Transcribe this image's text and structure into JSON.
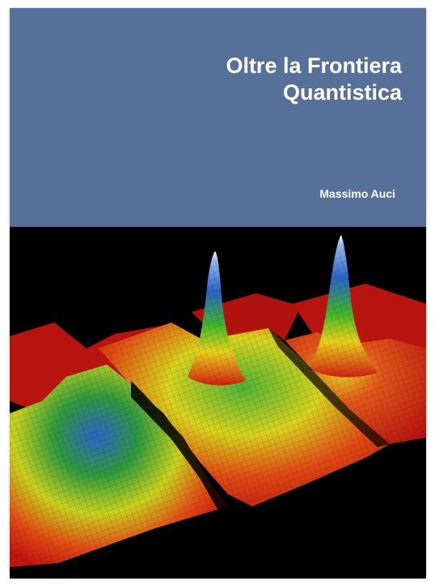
{
  "book": {
    "title_line1": "Oltre la Frontiera",
    "title_line2": "Quantistica",
    "author": "Massimo Auci"
  },
  "colors": {
    "header_background": "#56709a",
    "title_text": "#ffffff",
    "artwork_background": "#000000"
  },
  "artwork": {
    "subject": "three 3D surface plots of density distributions (red-yellow-green-blue-white colormap)"
  }
}
